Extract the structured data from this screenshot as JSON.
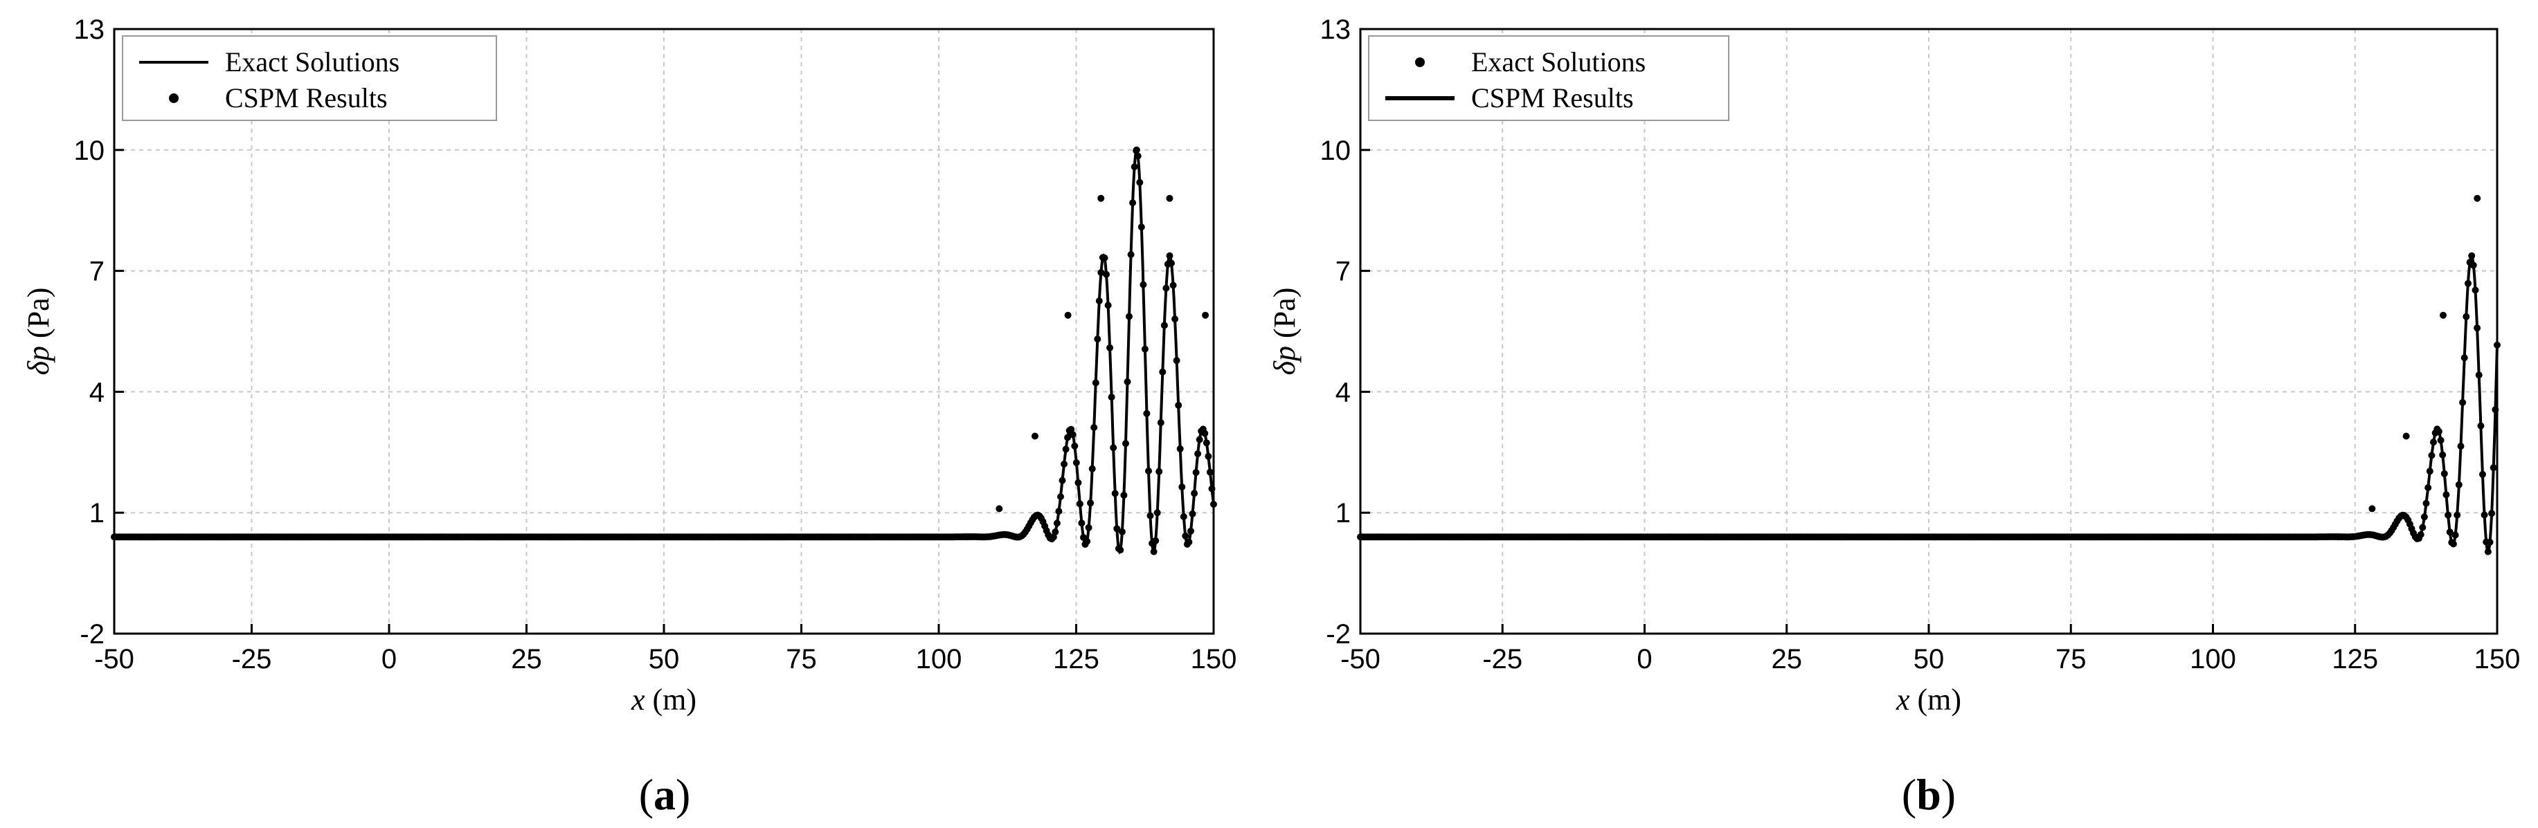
{
  "chart_data": [
    {
      "panel": "(a)",
      "caption_letter": "a",
      "type": "line",
      "xlabel_var": "x",
      "xlabel_unit": " (m)",
      "ylabel_var": "δp",
      "ylabel_unit": " (Pa)",
      "xlim": [
        -50,
        150
      ],
      "ylim": [
        -2,
        13
      ],
      "xticks": [
        -50,
        -25,
        0,
        25,
        50,
        75,
        100,
        125,
        150
      ],
      "yticks": [
        -2,
        1,
        4,
        7,
        10,
        13
      ],
      "grid": true,
      "legend_position": "top-left",
      "wave": {
        "center": 136,
        "sigma": 10.8,
        "amplitude": 10,
        "period": 6.2
      },
      "series": [
        {
          "name": "Exact Solutions",
          "marker": "line"
        },
        {
          "name": "CSPM Results",
          "marker": "dots"
        }
      ],
      "peaks": [
        {
          "x": 105,
          "y": 0.4
        },
        {
          "x": 111,
          "y": 1.1
        },
        {
          "x": 117.5,
          "y": 2.9
        },
        {
          "x": 123.5,
          "y": 5.9
        },
        {
          "x": 129.5,
          "y": 8.8
        },
        {
          "x": 136,
          "y": 10.0
        },
        {
          "x": 142,
          "y": 8.8
        },
        {
          "x": 148.5,
          "y": 5.9
        }
      ]
    },
    {
      "panel": "(b)",
      "caption_letter": "b",
      "type": "line",
      "xlabel_var": "x",
      "xlabel_unit": " (m)",
      "ylabel_var": "δp",
      "ylabel_unit": " (Pa)",
      "xlim": [
        -50,
        150
      ],
      "ylim": [
        -2,
        13
      ],
      "xticks": [
        -50,
        -25,
        0,
        25,
        50,
        75,
        100,
        125,
        150
      ],
      "yticks": [
        -2,
        1,
        4,
        7,
        10,
        13
      ],
      "grid": true,
      "legend_position": "top-left",
      "wave": {
        "center": 151.5,
        "sigma": 10.8,
        "amplitude": 10,
        "period": 6.2
      },
      "series": [
        {
          "name": "Exact Solutions",
          "marker": "dots"
        },
        {
          "name": "CSPM Results",
          "marker": "line"
        }
      ],
      "peaks": [
        {
          "x": 122,
          "y": 0.4
        },
        {
          "x": 128,
          "y": 1.1
        },
        {
          "x": 134,
          "y": 2.9
        },
        {
          "x": 140.5,
          "y": 5.9
        },
        {
          "x": 146.5,
          "y": 8.8
        }
      ]
    }
  ]
}
